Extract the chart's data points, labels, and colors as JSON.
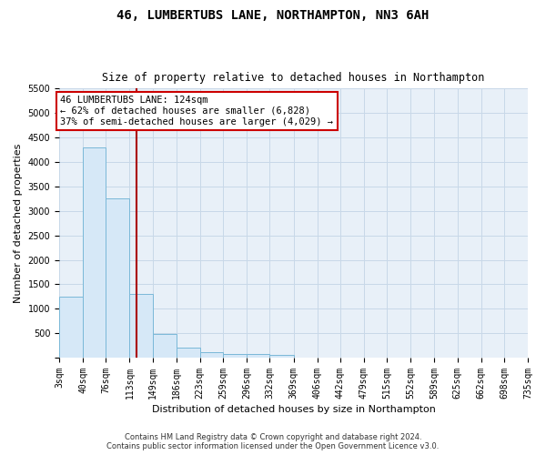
{
  "title": "46, LUMBERTUBS LANE, NORTHAMPTON, NN3 6AH",
  "subtitle": "Size of property relative to detached houses in Northampton",
  "xlabel": "Distribution of detached houses by size in Northampton",
  "ylabel": "Number of detached properties",
  "footer_line1": "Contains HM Land Registry data © Crown copyright and database right 2024.",
  "footer_line2": "Contains public sector information licensed under the Open Government Licence v3.0.",
  "property_size": 124,
  "property_label": "46 LUMBERTUBS LANE: 124sqm",
  "annotation_line2": "← 62% of detached houses are smaller (6,828)",
  "annotation_line3": "37% of semi-detached houses are larger (4,029) →",
  "bar_color": "#d6e8f7",
  "bar_edge_color": "#7ab8d8",
  "red_line_color": "#aa0000",
  "annotation_box_color": "#ffffff",
  "annotation_box_edge_color": "#cc0000",
  "grid_color": "#c8d8e8",
  "background_color": "#e8f0f8",
  "bin_edges": [
    3,
    40,
    76,
    113,
    149,
    186,
    223,
    259,
    296,
    332,
    369,
    406,
    442,
    479,
    515,
    552,
    589,
    625,
    662,
    698,
    735
  ],
  "bin_counts": [
    1250,
    4300,
    3250,
    1300,
    480,
    200,
    120,
    80,
    70,
    60,
    0,
    0,
    0,
    0,
    0,
    0,
    0,
    0,
    0,
    0
  ],
  "ylim": [
    0,
    5500
  ],
  "yticks": [
    0,
    500,
    1000,
    1500,
    2000,
    2500,
    3000,
    3500,
    4000,
    4500,
    5000,
    5500
  ],
  "tick_labels": [
    "3sqm",
    "40sqm",
    "76sqm",
    "113sqm",
    "149sqm",
    "186sqm",
    "223sqm",
    "259sqm",
    "296sqm",
    "332sqm",
    "369sqm",
    "406sqm",
    "442sqm",
    "479sqm",
    "515sqm",
    "552sqm",
    "589sqm",
    "625sqm",
    "662sqm",
    "698sqm",
    "735sqm"
  ],
  "title_fontsize": 10,
  "subtitle_fontsize": 8.5,
  "axis_label_fontsize": 8,
  "tick_fontsize": 7,
  "annotation_fontsize": 7.5,
  "footer_fontsize": 6
}
